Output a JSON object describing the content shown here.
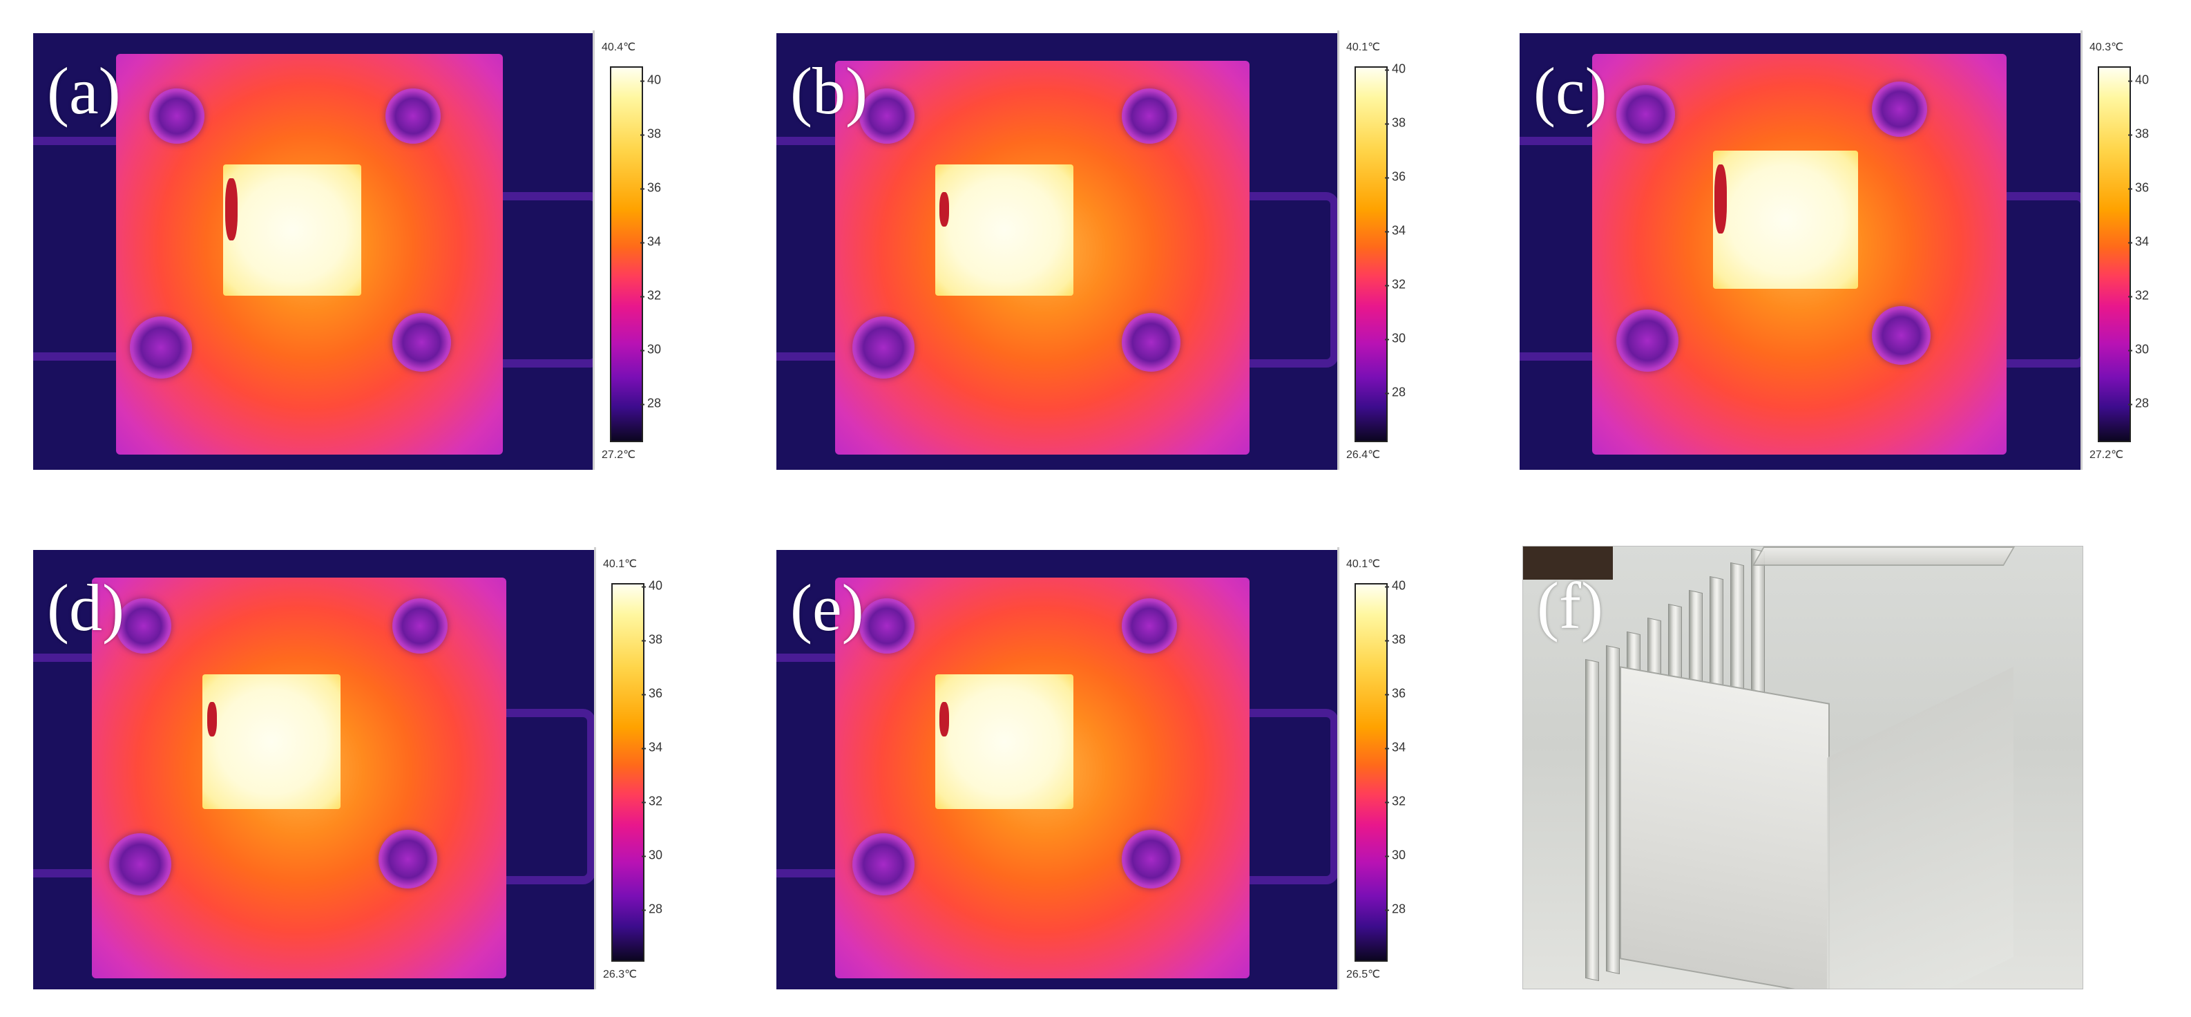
{
  "panels": [
    {
      "label": "(a)",
      "max": "40.4℃",
      "min": "27.2℃",
      "ticks": [
        "40",
        "38",
        "36",
        "34",
        "32",
        "30",
        "28"
      ]
    },
    {
      "label": "(b)",
      "max": "40.1℃",
      "min": "26.4℃",
      "ticks": [
        "40",
        "38",
        "36",
        "34",
        "32",
        "30",
        "28"
      ]
    },
    {
      "label": "(c)",
      "max": "40.3℃",
      "min": "27.2℃",
      "ticks": [
        "40",
        "38",
        "36",
        "34",
        "32",
        "30",
        "28"
      ]
    },
    {
      "label": "(d)",
      "max": "40.1℃",
      "min": "26.3℃",
      "ticks": [
        "40",
        "38",
        "36",
        "34",
        "32",
        "30",
        "28"
      ]
    },
    {
      "label": "(e)",
      "max": "40.1℃",
      "min": "26.5℃",
      "ticks": [
        "40",
        "38",
        "36",
        "34",
        "32",
        "30",
        "28"
      ]
    },
    {
      "label": "(f)"
    }
  ],
  "colors": {
    "background_cold": "#1a0f5e",
    "plate_warm": "#ff6a1e",
    "hotspot": "#fffbd8",
    "photo_bg": "#d9dbd8"
  }
}
